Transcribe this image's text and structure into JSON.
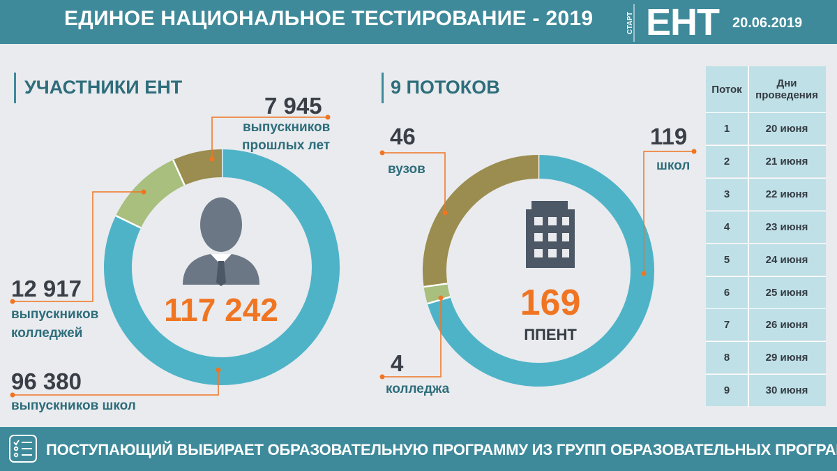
{
  "header": {
    "title": "ЕДИНОЕ НАЦИОНАЛЬНОЕ ТЕСТИРОВАНИЕ - 2019",
    "start_label": "СТАРТ",
    "logo": "ЕНТ",
    "date": "20.06.2019"
  },
  "participants": {
    "title": "УЧАСТНИКИ ЕНТ",
    "total": "117 242",
    "past_years": {
      "value": "7 945",
      "label_1": "выпускников",
      "label_2": "прошлых лет"
    },
    "colleges": {
      "value": "12 917",
      "label_1": "выпускников",
      "label_2": "колледжей"
    },
    "schools": {
      "value": "96 380",
      "label_1": "выпускников школ"
    }
  },
  "venues": {
    "title": "9 ПОТОКОВ",
    "total": "169",
    "total_label": "ППЕНТ",
    "universities": {
      "value": "46",
      "label": "вузов"
    },
    "schools": {
      "value": "119",
      "label": "школ"
    },
    "colleges": {
      "value": "4",
      "label": "колледжа"
    }
  },
  "schedule": {
    "headers": [
      "Поток",
      "Дни проведения"
    ],
    "rows": [
      [
        "1",
        "20 июня"
      ],
      [
        "2",
        "21 июня"
      ],
      [
        "3",
        "22 июня"
      ],
      [
        "4",
        "23 июня"
      ],
      [
        "5",
        "24 июня"
      ],
      [
        "6",
        "25 июня"
      ],
      [
        "7",
        "26 июня"
      ],
      [
        "8",
        "29 июня"
      ],
      [
        "9",
        "30 июня"
      ]
    ]
  },
  "footer": {
    "text": "ПОСТУПАЮЩИЙ ВЫБИРАЕТ ОБРАЗОВАТЕЛЬНУЮ ПРОГРАММУ ИЗ ГРУПП ОБРАЗОВАТЕЛЬНЫХ ПРОГРАММ"
  },
  "colors": {
    "teal": "#3e8a9a",
    "donut_blue": "#4fb3c8",
    "donut_olive": "#9b8c4f",
    "donut_light_green": "#a8bf7e",
    "accent_orange": "#f07522",
    "icon_gray": "#6b7785",
    "building_gray": "#4d5866"
  },
  "chart_data": [
    {
      "type": "pie",
      "categories": [
        "выпускников школ",
        "выпускников колледжей",
        "выпускников прошлых лет"
      ],
      "values": [
        96380,
        12917,
        7945
      ]
    },
    {
      "type": "pie",
      "categories": [
        "школ",
        "колледжа",
        "вузов"
      ],
      "values": [
        119,
        4,
        46
      ]
    }
  ]
}
